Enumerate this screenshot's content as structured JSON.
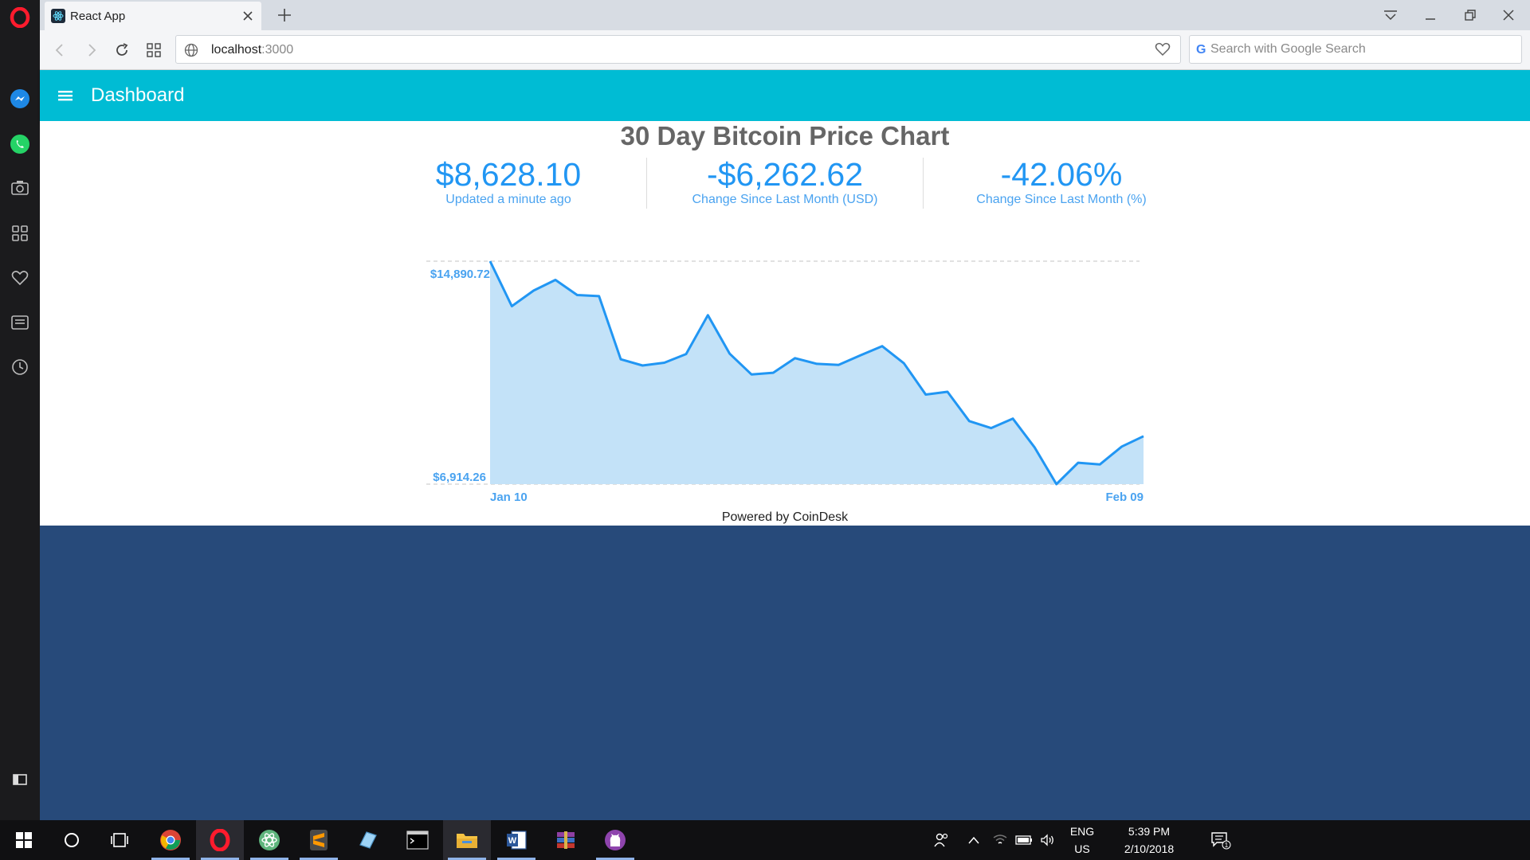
{
  "browser": {
    "tab_title": "React App",
    "url_host": "localhost",
    "url_port": ":3000",
    "search_placeholder": "Search with Google Search"
  },
  "app": {
    "title": "Dashboard"
  },
  "stats": [
    {
      "value": "$8,628.10",
      "label": "Updated a minute ago"
    },
    {
      "value": "-$6,262.62",
      "label": "Change Since Last Month (USD)"
    },
    {
      "value": "-42.06%",
      "label": "Change Since Last Month (%)"
    }
  ],
  "footer": {
    "powered": "Powered by CoinDesk"
  },
  "chart_data": {
    "type": "area",
    "title": "30 Day Bitcoin Price Chart",
    "y_max_label": "$14,890.72",
    "y_min_label": "$6,914.26",
    "x_start_label": "Jan 10",
    "x_end_label": "Feb 09",
    "ylim": [
      6914.26,
      14890.72
    ],
    "x": [
      "Jan 10",
      "Jan 11",
      "Jan 12",
      "Jan 13",
      "Jan 14",
      "Jan 15",
      "Jan 16",
      "Jan 17",
      "Jan 18",
      "Jan 19",
      "Jan 20",
      "Jan 21",
      "Jan 22",
      "Jan 23",
      "Jan 24",
      "Jan 25",
      "Jan 26",
      "Jan 27",
      "Jan 28",
      "Jan 29",
      "Jan 30",
      "Jan 31",
      "Feb 01",
      "Feb 02",
      "Feb 03",
      "Feb 04",
      "Feb 05",
      "Feb 06",
      "Feb 07",
      "Feb 08",
      "Feb 09"
    ],
    "values": [
      14890.72,
      13280,
      13840,
      14220,
      13680,
      13640,
      11380,
      11160,
      11260,
      11570,
      12960,
      11580,
      10840,
      10900,
      11420,
      11220,
      11180,
      11520,
      11850,
      11240,
      10120,
      10220,
      9170,
      8920,
      9260,
      8230,
      6914.26,
      7680,
      7620,
      8260,
      8628.1
    ],
    "series_color": "#2196f3",
    "fill_color": "#c3e2f8",
    "grid": false
  },
  "taskbar": {
    "lang": "ENG",
    "region": "US",
    "time": "5:39 PM",
    "date": "2/10/2018",
    "notif_count": "1"
  }
}
